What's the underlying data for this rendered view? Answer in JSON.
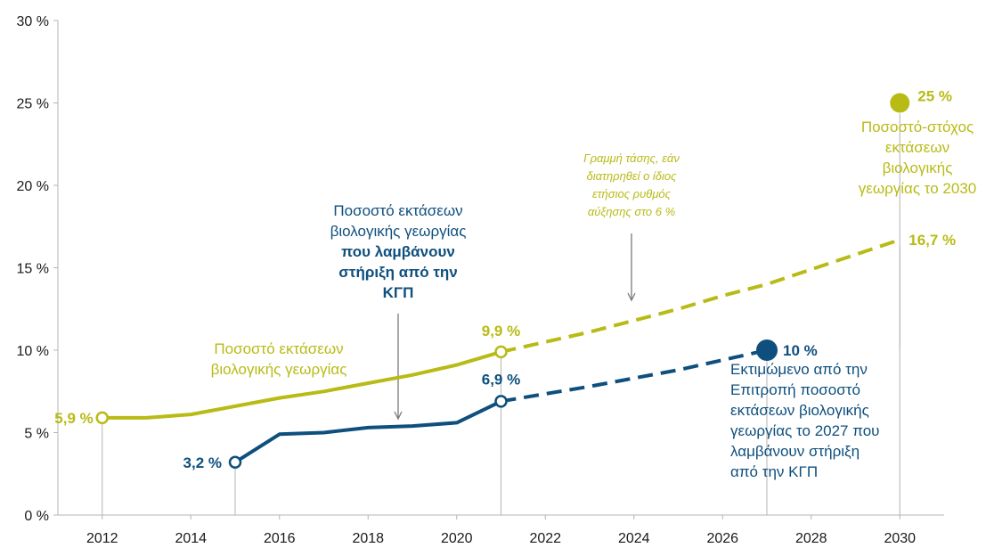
{
  "colors": {
    "organic": "#b8bb16",
    "cap": "#0e4f7e",
    "axis": "#b4b4b4",
    "text": "#1a1a1a",
    "note": "#7a7a7a"
  },
  "chart_data": {
    "type": "line",
    "xlim": [
      2011,
      2031
    ],
    "ylim": [
      0,
      30
    ],
    "x_ticks": [
      "2012",
      "2014",
      "2016",
      "2018",
      "2020",
      "2022",
      "2024",
      "2026",
      "2028",
      "2030"
    ],
    "y_ticks": [
      "0 %",
      "5 %",
      "10 %",
      "15 %",
      "20 %",
      "25 %",
      "30 %"
    ],
    "series": [
      {
        "key": "organic",
        "x": [
          2012,
          2013,
          2014,
          2015,
          2016,
          2017,
          2018,
          2019,
          2020,
          2021
        ],
        "y": [
          5.9,
          5.9,
          6.1,
          6.6,
          7.1,
          7.5,
          8.0,
          8.5,
          9.1,
          9.9
        ]
      },
      {
        "key": "organic_trend",
        "x": [
          2021,
          2022,
          2023,
          2024,
          2025,
          2026,
          2027,
          2028,
          2029,
          2030
        ],
        "y": [
          9.9,
          10.5,
          11.1,
          11.8,
          12.5,
          13.3,
          14.0,
          14.9,
          15.8,
          16.7
        ]
      },
      {
        "key": "cap",
        "x": [
          2015,
          2016,
          2017,
          2018,
          2019,
          2020,
          2021
        ],
        "y": [
          3.2,
          4.9,
          5.0,
          5.3,
          5.4,
          5.6,
          6.9
        ]
      },
      {
        "key": "cap_projection",
        "x": [
          2021,
          2022,
          2023,
          2024,
          2025,
          2026,
          2027
        ],
        "y": [
          6.9,
          7.35,
          7.8,
          8.3,
          8.8,
          9.4,
          10.0
        ]
      }
    ],
    "points": [
      {
        "key": "p_organic_2012",
        "x": 2012,
        "y": 5.9,
        "label": "5,9 %"
      },
      {
        "key": "p_organic_2021",
        "x": 2021,
        "y": 9.9,
        "label": "9,9 %"
      },
      {
        "key": "p_trend_2030",
        "x": 2030,
        "y": 16.7,
        "label": "16,7 %"
      },
      {
        "key": "p_target_2030",
        "x": 2030,
        "y": 25,
        "label": "25 %"
      },
      {
        "key": "p_cap_2015",
        "x": 2015,
        "y": 3.2,
        "label": "3,2 %"
      },
      {
        "key": "p_cap_2021",
        "x": 2021,
        "y": 6.9,
        "label": "6,9 %"
      },
      {
        "key": "p_cap_2027",
        "x": 2027,
        "y": 10,
        "label": "10 %"
      }
    ],
    "annotations": {
      "organic_label": [
        "Ποσοστό εκτάσεων",
        "βιολογικής γεωργίας"
      ],
      "cap_label": [
        "Ποσοστό εκτάσεων",
        "βιολογικής γεωργίας"
      ],
      "cap_label_bold": [
        "που λαμβάνουν",
        "στήριξη από την",
        "ΚΓΠ"
      ],
      "trend_note": [
        "Γραμμή τάσης, εάν",
        "διατηρηθεί ο ίδιος",
        "ετήσιος ρυθμός",
        "αύξησης στο 6 %"
      ],
      "target_desc": [
        "Ποσοστό-στόχος",
        "εκτάσεων",
        "βιολογικής",
        "γεωργίας το 2030"
      ],
      "cap_2027_desc": [
        "Εκτιμώμενο από την",
        "Επιτροπή ποσοστό",
        "εκτάσεων βιολογικής",
        "γεωργίας το 2027 που",
        "λαμβάνουν στήριξη",
        "από την ΚΓΠ"
      ]
    }
  }
}
